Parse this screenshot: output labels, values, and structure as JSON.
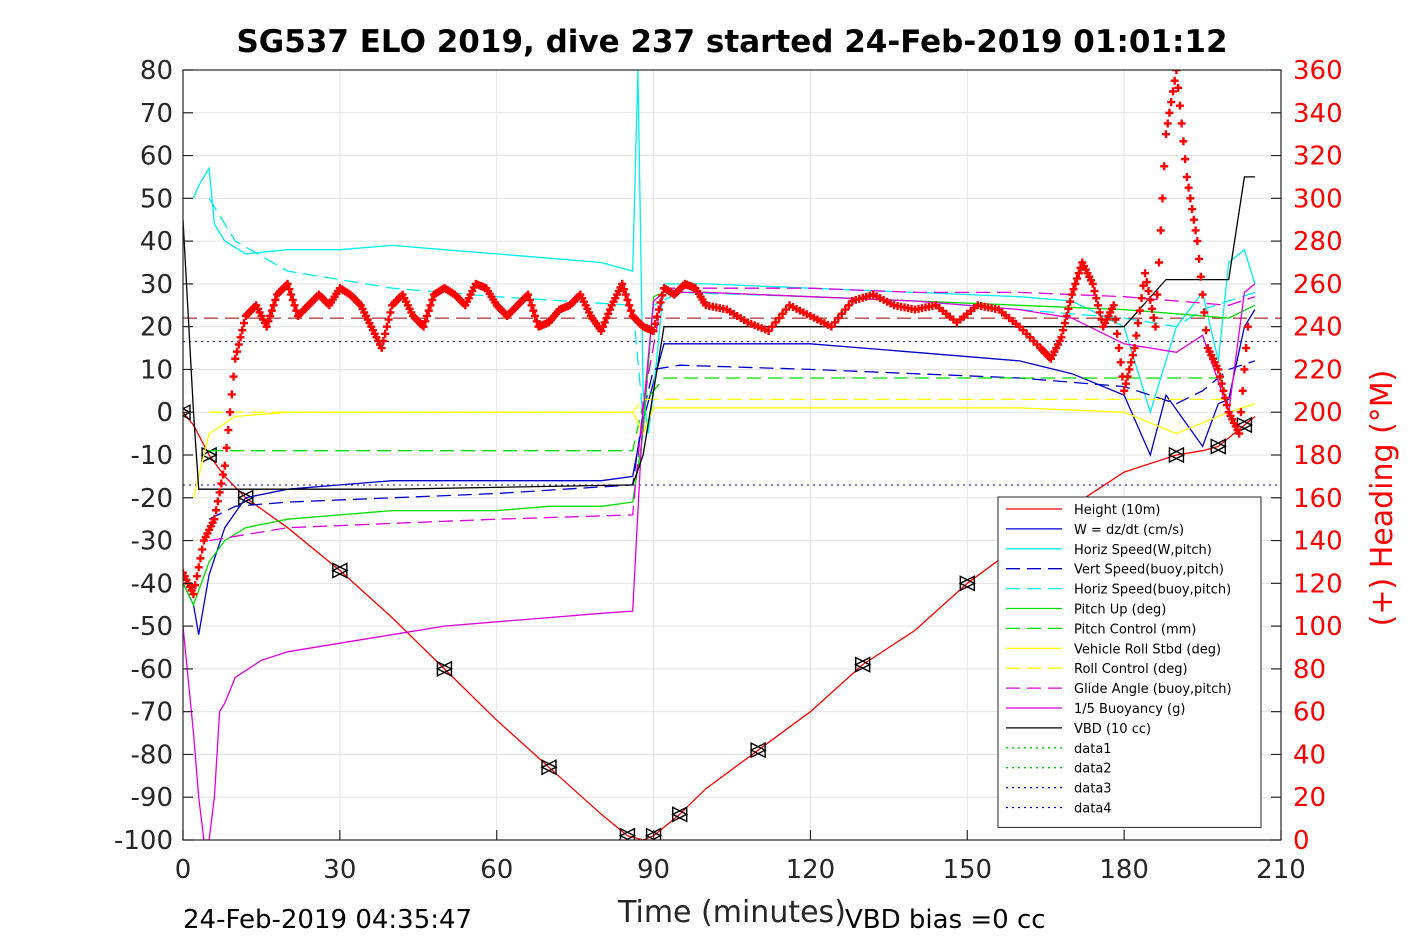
{
  "chart_data": {
    "type": "line",
    "title": "SG537 ELO 2019, dive 237 started 24-Feb-2019 01:01:12",
    "xlabel": "Time (minutes)",
    "ylabel": "",
    "y2label": "(+) Heading (°M)",
    "xlim": [
      0,
      210
    ],
    "ylim": [
      -100,
      80
    ],
    "y2lim": [
      0,
      360
    ],
    "x_ticks": [
      "0",
      "30",
      "60",
      "90",
      "120",
      "150",
      "180",
      "210"
    ],
    "y_ticks": [
      "80",
      "70",
      "60",
      "50",
      "40",
      "30",
      "20",
      "10",
      "0",
      "-10",
      "-20",
      "-30",
      "-40",
      "-50",
      "-60",
      "-70",
      "-80",
      "-90",
      "-100"
    ],
    "y2_ticks": [
      "360",
      "340",
      "320",
      "300",
      "280",
      "260",
      "240",
      "220",
      "200",
      "180",
      "160",
      "140",
      "120",
      "100",
      "80",
      "60",
      "40",
      "20",
      "0"
    ],
    "grid": true,
    "legend_position": "bottom-right",
    "footer_left": "24-Feb-2019 04:35:47",
    "footer_right": "VBD bias =0 cc",
    "series": [
      {
        "name": "Height (10m)",
        "color": "#ff0000",
        "style": "solid",
        "markers": "triangles",
        "x": [
          0,
          2,
          5,
          8,
          12,
          20,
          30,
          40,
          50,
          60,
          70,
          80,
          85,
          88,
          90,
          92,
          95,
          100,
          110,
          120,
          130,
          140,
          150,
          160,
          170,
          180,
          190,
          195,
          198,
          200,
          203,
          205
        ],
        "y": [
          0,
          -3,
          -10,
          -15,
          -20,
          -27,
          -37,
          -48,
          -60,
          -72,
          -83,
          -94,
          -99,
          -100,
          -99,
          -97,
          -94,
          -88,
          -79,
          -70,
          -59,
          -51,
          -40,
          -31,
          -22,
          -14,
          -10,
          -9,
          -8,
          -6,
          -3,
          -1
        ]
      },
      {
        "name": "W = dz/dt (cm/s)",
        "color": "#0000cc",
        "style": "solid",
        "x": [
          0,
          2,
          3,
          5,
          8,
          12,
          20,
          30,
          40,
          50,
          60,
          70,
          80,
          86,
          88,
          92,
          100,
          120,
          140,
          160,
          170,
          180,
          185,
          188,
          195,
          198,
          200,
          203,
          205
        ],
        "y": [
          -40,
          -45,
          -52,
          -38,
          -27,
          -20,
          -18,
          -17,
          -16,
          -16,
          -16,
          -16,
          -16,
          -15,
          -2,
          16,
          16,
          16,
          14,
          12,
          9,
          4,
          -10,
          4,
          -8,
          2,
          3,
          20,
          24
        ]
      },
      {
        "name": "Horiz Speed(W,pitch)",
        "color": "#00eeee",
        "style": "solid",
        "x": [
          2,
          3,
          5,
          6,
          8,
          12,
          20,
          30,
          40,
          50,
          60,
          70,
          80,
          86,
          87,
          88,
          89,
          90,
          92,
          100,
          120,
          140,
          160,
          170,
          180,
          185,
          190,
          195,
          198,
          200,
          203,
          205
        ],
        "y": [
          50,
          53,
          57,
          44,
          40,
          37,
          38,
          38,
          39,
          38,
          37,
          36,
          35,
          33,
          80,
          5,
          -5,
          5,
          30,
          30,
          29,
          28,
          27,
          26,
          20,
          0,
          20,
          28,
          12,
          35,
          38,
          30
        ]
      },
      {
        "name": "Vert Speed(buoy,pitch)",
        "color": "#0000cc",
        "style": "dashed",
        "x": [
          5,
          10,
          20,
          40,
          60,
          86,
          88,
          90,
          95,
          120,
          140,
          160,
          180,
          190,
          195,
          200,
          205
        ],
        "y": [
          -25,
          -22,
          -21,
          -20,
          -19,
          -17,
          0,
          10,
          11,
          10,
          9,
          8,
          6,
          2,
          5,
          10,
          12
        ]
      },
      {
        "name": "Horiz Speed(buoy,pitch)",
        "color": "#00eeee",
        "style": "dashed",
        "x": [
          5,
          10,
          20,
          40,
          60,
          86,
          88,
          90,
          95,
          120,
          140,
          160,
          180,
          190,
          195,
          200,
          205
        ],
        "y": [
          50,
          40,
          33,
          29,
          27,
          25,
          -1,
          25,
          28,
          27,
          26,
          24,
          22,
          20,
          24,
          26,
          28
        ]
      },
      {
        "name": "Pitch Up (deg)",
        "color": "#00dd00",
        "style": "solid",
        "x": [
          0,
          2,
          5,
          8,
          12,
          20,
          30,
          40,
          50,
          60,
          70,
          80,
          86,
          88,
          90,
          92,
          100,
          120,
          140,
          160,
          180,
          190,
          200,
          205
        ],
        "y": [
          -40,
          -45,
          -35,
          -30,
          -27,
          -25,
          -24,
          -23,
          -23,
          -23,
          -22,
          -22,
          -21,
          -5,
          27,
          28,
          28,
          27,
          26,
          25,
          24,
          23,
          22,
          25
        ]
      },
      {
        "name": "Pitch Control (mm)",
        "color": "#00dd00",
        "style": "dashed",
        "x": [
          5,
          20,
          40,
          60,
          86,
          88,
          92,
          120,
          140,
          160,
          180,
          200
        ],
        "y": [
          -9,
          -9,
          -9,
          -9,
          -9,
          2,
          8,
          8,
          8,
          8,
          8,
          8
        ]
      },
      {
        "name": "Vehicle Roll Stbd (deg)",
        "color": "#ffff00",
        "style": "solid",
        "x": [
          2,
          5,
          10,
          20,
          40,
          60,
          80,
          86,
          88,
          90,
          100,
          120,
          140,
          160,
          180,
          190,
          200,
          205
        ],
        "y": [
          -20,
          -5,
          -1,
          0,
          0,
          0,
          0,
          0,
          -5,
          1,
          1,
          1,
          1,
          1,
          0,
          -5,
          0,
          2
        ]
      },
      {
        "name": "Roll Control (deg)",
        "color": "#ffff00",
        "style": "dashed",
        "x": [
          5,
          20,
          40,
          60,
          86,
          88,
          120,
          160,
          200
        ],
        "y": [
          0,
          0,
          0,
          0,
          0,
          3,
          3,
          3,
          3
        ]
      },
      {
        "name": "Glide Angle (buoy,pitch)",
        "color": "#dd00dd",
        "style": "dashed",
        "x": [
          5,
          20,
          40,
          60,
          86,
          88,
          92,
          120,
          140,
          160,
          180,
          190,
          200,
          205
        ],
        "y": [
          -30,
          -27,
          -26,
          -25,
          -24,
          2,
          29,
          29,
          28,
          28,
          27,
          26,
          25,
          27
        ]
      },
      {
        "name": "1/5 Buoyancy (g)",
        "color": "#dd00dd",
        "style": "solid",
        "x": [
          0,
          2,
          3,
          4,
          5,
          6,
          7,
          8,
          10,
          15,
          20,
          30,
          40,
          50,
          60,
          70,
          80,
          86,
          88,
          90,
          92,
          100,
          120,
          140,
          160,
          170,
          180,
          190,
          195,
          200,
          203,
          205
        ],
        "y": [
          -50,
          -75,
          -90,
          -100,
          -100,
          -90,
          -70,
          -68,
          -62,
          -58,
          -56,
          -54,
          -52,
          -50,
          -49,
          -48,
          -47,
          -46.5,
          0,
          26,
          28,
          28,
          27,
          26,
          24,
          22,
          16,
          14,
          18,
          0,
          28,
          30
        ]
      },
      {
        "name": "VBD (10 cc)",
        "color": "#000000",
        "style": "solid",
        "x": [
          0,
          2,
          3,
          40,
          86,
          88,
          90,
          92,
          180,
          188,
          190,
          198,
          200,
          203,
          205
        ],
        "y": [
          45,
          0,
          -18,
          -18,
          -17,
          -10,
          5,
          20,
          20,
          31,
          31,
          31,
          31,
          55,
          55
        ]
      },
      {
        "name": "data1",
        "color": "#00cc00",
        "style": "dotted",
        "x": [],
        "y": []
      },
      {
        "name": "data2",
        "color": "#00cc00",
        "style": "dotted",
        "x": [],
        "y": []
      },
      {
        "name": "data3",
        "color": "#0000cc",
        "style": "dotted",
        "x": [],
        "y": []
      },
      {
        "name": "data4",
        "color": "#0000cc",
        "style": "dotted",
        "x": [],
        "y": []
      }
    ],
    "reference_lines": [
      {
        "axis": "y",
        "value": 22,
        "color": "#990000",
        "style": "dashed"
      },
      {
        "axis": "y",
        "value": 16.5,
        "color": "#0000cc",
        "style": "dotted"
      },
      {
        "axis": "y",
        "value": -17,
        "color": "#0000cc",
        "style": "dotted"
      }
    ],
    "heading": {
      "axis": "right",
      "color": "#ff0000",
      "marker": "+",
      "x": [
        0,
        2,
        4,
        6,
        8,
        10,
        12,
        14,
        16,
        18,
        20,
        22,
        24,
        26,
        28,
        30,
        32,
        34,
        36,
        38,
        40,
        42,
        44,
        46,
        48,
        50,
        52,
        54,
        56,
        58,
        60,
        62,
        64,
        66,
        68,
        70,
        72,
        74,
        76,
        78,
        80,
        82,
        84,
        86,
        88,
        90,
        92,
        94,
        96,
        98,
        100,
        104,
        108,
        112,
        116,
        120,
        124,
        128,
        132,
        136,
        140,
        144,
        148,
        152,
        156,
        160,
        164,
        166,
        168,
        170,
        172,
        174,
        176,
        178,
        180,
        182,
        184,
        186,
        188,
        190,
        192,
        194,
        196,
        198,
        200,
        202,
        204
      ],
      "y": [
        125,
        115,
        140,
        150,
        175,
        225,
        245,
        250,
        240,
        255,
        260,
        245,
        250,
        255,
        250,
        258,
        255,
        250,
        240,
        230,
        250,
        255,
        245,
        240,
        255,
        258,
        255,
        250,
        260,
        258,
        250,
        245,
        250,
        255,
        240,
        242,
        248,
        250,
        255,
        245,
        238,
        250,
        260,
        245,
        240,
        238,
        258,
        255,
        260,
        258,
        250,
        248,
        242,
        238,
        250,
        245,
        240,
        252,
        255,
        250,
        248,
        250,
        242,
        250,
        248,
        240,
        230,
        225,
        235,
        255,
        270,
        260,
        240,
        250,
        210,
        230,
        265,
        240,
        330,
        360,
        310,
        280,
        230,
        220,
        200,
        190,
        250
      ]
    }
  }
}
